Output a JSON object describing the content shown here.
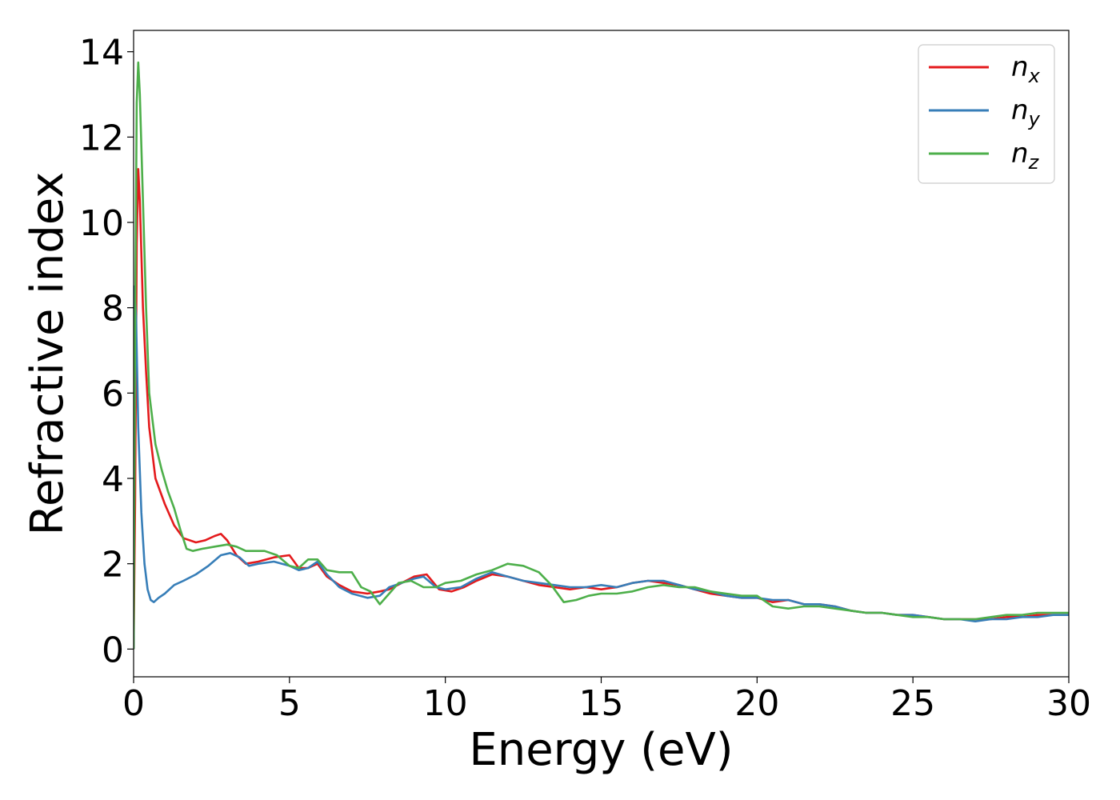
{
  "chart_data": {
    "type": "line",
    "title": "",
    "xlabel": "Energy (eV)",
    "ylabel": "Refractive index",
    "xlim": [
      0,
      30
    ],
    "ylim": [
      -0.65,
      14.5
    ],
    "xticks": [
      0,
      5,
      10,
      15,
      20,
      25,
      30
    ],
    "yticks": [
      0,
      2,
      4,
      6,
      8,
      10,
      12,
      14
    ],
    "grid": false,
    "legend_position": "top-right",
    "series": [
      {
        "name": "n_x",
        "label_base": "n",
        "label_sub": "x",
        "color": "#e41a1c",
        "x": [
          0,
          0.05,
          0.1,
          0.15,
          0.2,
          0.3,
          0.4,
          0.5,
          0.7,
          1.0,
          1.3,
          1.6,
          2.0,
          2.3,
          2.6,
          2.8,
          3.0,
          3.3,
          3.6,
          4.0,
          4.5,
          5.0,
          5.3,
          5.6,
          5.9,
          6.2,
          6.6,
          7.0,
          7.5,
          7.9,
          8.2,
          8.6,
          9.0,
          9.4,
          9.8,
          10.2,
          10.6,
          11.0,
          11.5,
          12.0,
          12.5,
          13.0,
          13.5,
          14.0,
          14.5,
          15.0,
          15.5,
          16.0,
          16.5,
          17.0,
          17.5,
          18.0,
          18.5,
          19.0,
          19.5,
          20.0,
          20.5,
          21.0,
          21.5,
          22.0,
          22.5,
          23.0,
          23.5,
          24.0,
          24.5,
          25.0,
          25.5,
          26.0,
          26.5,
          27.0,
          27.5,
          28.0,
          28.5,
          29.0,
          29.5,
          30.0
        ],
        "y": [
          0,
          3.5,
          9.5,
          11.25,
          10.5,
          8.0,
          6.5,
          5.2,
          4.0,
          3.4,
          2.9,
          2.6,
          2.5,
          2.55,
          2.65,
          2.7,
          2.55,
          2.2,
          2.0,
          2.05,
          2.15,
          2.2,
          1.9,
          1.9,
          2.0,
          1.7,
          1.5,
          1.35,
          1.3,
          1.35,
          1.4,
          1.55,
          1.7,
          1.75,
          1.4,
          1.35,
          1.45,
          1.6,
          1.75,
          1.7,
          1.6,
          1.5,
          1.45,
          1.4,
          1.45,
          1.4,
          1.45,
          1.55,
          1.6,
          1.55,
          1.5,
          1.4,
          1.3,
          1.25,
          1.2,
          1.2,
          1.1,
          1.15,
          1.05,
          1.05,
          1.0,
          0.9,
          0.85,
          0.85,
          0.8,
          0.8,
          0.75,
          0.7,
          0.7,
          0.7,
          0.7,
          0.75,
          0.75,
          0.8,
          0.8,
          0.8
        ]
      },
      {
        "name": "n_y",
        "label_base": "n",
        "label_sub": "y",
        "color": "#377eb8",
        "x": [
          0,
          0.03,
          0.08,
          0.15,
          0.25,
          0.35,
          0.45,
          0.55,
          0.65,
          0.8,
          1.0,
          1.3,
          1.6,
          2.0,
          2.4,
          2.8,
          3.1,
          3.4,
          3.7,
          4.0,
          4.5,
          5.0,
          5.3,
          5.6,
          5.9,
          6.2,
          6.6,
          7.0,
          7.5,
          7.9,
          8.2,
          8.6,
          9.0,
          9.3,
          9.7,
          10.0,
          10.5,
          11.0,
          11.5,
          12.0,
          12.5,
          13.0,
          13.5,
          14.0,
          14.5,
          15.0,
          15.5,
          16.0,
          16.5,
          17.0,
          17.5,
          18.0,
          18.5,
          19.0,
          19.5,
          20.0,
          20.5,
          21.0,
          21.5,
          22.0,
          22.5,
          23.0,
          23.5,
          24.0,
          24.5,
          25.0,
          25.5,
          26.0,
          26.5,
          27.0,
          27.5,
          28.0,
          28.5,
          29.0,
          29.5,
          30.0
        ],
        "y": [
          0,
          8.5,
          7.8,
          5.2,
          3.2,
          2.0,
          1.4,
          1.15,
          1.1,
          1.2,
          1.3,
          1.5,
          1.6,
          1.75,
          1.95,
          2.2,
          2.25,
          2.15,
          1.95,
          2.0,
          2.05,
          1.95,
          1.85,
          1.9,
          2.05,
          1.75,
          1.45,
          1.3,
          1.2,
          1.25,
          1.45,
          1.55,
          1.65,
          1.7,
          1.45,
          1.4,
          1.45,
          1.65,
          1.8,
          1.7,
          1.6,
          1.55,
          1.5,
          1.45,
          1.45,
          1.5,
          1.45,
          1.55,
          1.6,
          1.6,
          1.5,
          1.4,
          1.35,
          1.25,
          1.2,
          1.2,
          1.15,
          1.15,
          1.05,
          1.05,
          1.0,
          0.9,
          0.85,
          0.85,
          0.8,
          0.8,
          0.75,
          0.7,
          0.7,
          0.65,
          0.7,
          0.7,
          0.75,
          0.75,
          0.8,
          0.8
        ]
      },
      {
        "name": "n_z",
        "label_base": "n",
        "label_sub": "z",
        "color": "#4daf4a",
        "x": [
          0,
          0.05,
          0.1,
          0.15,
          0.2,
          0.3,
          0.4,
          0.5,
          0.7,
          0.9,
          1.1,
          1.3,
          1.5,
          1.7,
          1.9,
          2.2,
          2.6,
          3.0,
          3.3,
          3.6,
          3.9,
          4.2,
          4.6,
          5.0,
          5.3,
          5.6,
          5.9,
          6.2,
          6.6,
          7.0,
          7.3,
          7.6,
          7.9,
          8.2,
          8.5,
          8.9,
          9.3,
          9.7,
          10.0,
          10.5,
          11.0,
          11.5,
          12.0,
          12.5,
          13.0,
          13.4,
          13.8,
          14.2,
          14.6,
          15.0,
          15.5,
          16.0,
          16.5,
          17.0,
          17.5,
          18.0,
          18.5,
          19.0,
          19.5,
          20.0,
          20.5,
          21.0,
          21.5,
          22.0,
          22.5,
          23.0,
          23.5,
          24.0,
          24.5,
          25.0,
          25.5,
          26.0,
          26.5,
          27.0,
          27.5,
          28.0,
          28.5,
          29.0,
          29.5,
          30.0
        ],
        "y": [
          0,
          7.5,
          12.8,
          13.75,
          13.0,
          10.5,
          8.0,
          6.0,
          4.8,
          4.2,
          3.7,
          3.3,
          2.8,
          2.35,
          2.3,
          2.35,
          2.4,
          2.45,
          2.4,
          2.3,
          2.3,
          2.3,
          2.2,
          1.95,
          1.9,
          2.1,
          2.1,
          1.85,
          1.8,
          1.8,
          1.45,
          1.35,
          1.05,
          1.3,
          1.55,
          1.6,
          1.45,
          1.45,
          1.55,
          1.6,
          1.75,
          1.85,
          2.0,
          1.95,
          1.8,
          1.5,
          1.1,
          1.15,
          1.25,
          1.3,
          1.3,
          1.35,
          1.45,
          1.5,
          1.45,
          1.45,
          1.35,
          1.3,
          1.25,
          1.25,
          1.0,
          0.95,
          1.0,
          1.0,
          0.95,
          0.9,
          0.85,
          0.85,
          0.8,
          0.75,
          0.75,
          0.7,
          0.7,
          0.7,
          0.75,
          0.8,
          0.8,
          0.85,
          0.85,
          0.85
        ]
      }
    ]
  }
}
